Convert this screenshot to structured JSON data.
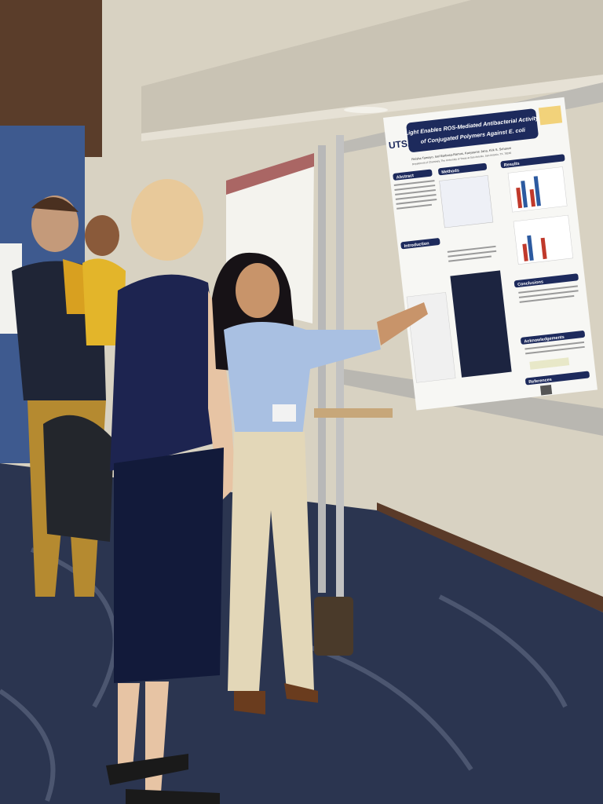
{
  "poster": {
    "logo": "UTSA",
    "title_lines": [
      "Light Enables ROS-Mediated Antibacterial Activity",
      "of Conjugated Polymers Against E. coli"
    ],
    "authors": "Reisha Tamayo, Isel Barbosa-Ramos, Kanyasree Jana, Kirk S. Schanze",
    "affiliation": "Department of Chemistry, The University of Texas at San Antonio, San Antonio, TX, 78249",
    "sections": [
      "Abstract",
      "Methods",
      "Results",
      "Introduction",
      "Conclusions",
      "Acknowledgements",
      "References"
    ]
  }
}
